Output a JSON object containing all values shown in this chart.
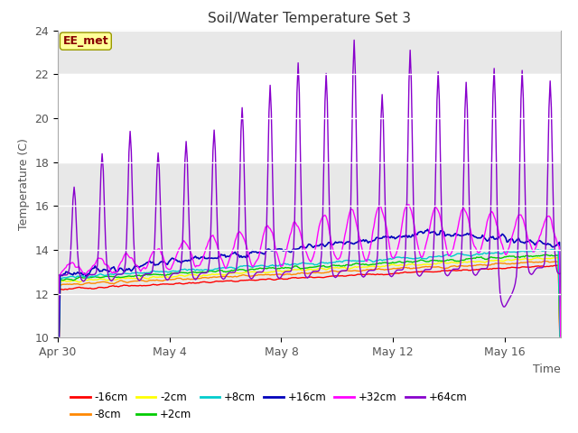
{
  "title": "Soil/Water Temperature Set 3",
  "xlabel": "Time",
  "ylabel": "Temperature (C)",
  "ylim": [
    10,
    24
  ],
  "yticks": [
    10,
    12,
    14,
    16,
    18,
    20,
    22,
    24
  ],
  "xtick_labels": [
    "Apr 30",
    "May 4",
    "May 8",
    "May 12",
    "May 16"
  ],
  "xtick_positions": [
    0,
    4,
    8,
    12,
    16
  ],
  "n_days": 18,
  "series_colors": {
    "-16cm": "#ff0000",
    "-8cm": "#ff8800",
    "-2cm": "#ffff00",
    "+2cm": "#00cc00",
    "+8cm": "#00cccc",
    "+16cm": "#0000bb",
    "+32cm": "#ff00ff",
    "+64cm": "#8800cc"
  },
  "shaded_band": [
    18,
    22
  ],
  "annotation_label": "EE_met",
  "background_color": "#ffffff",
  "plot_bg_color": "#e8e8e8"
}
